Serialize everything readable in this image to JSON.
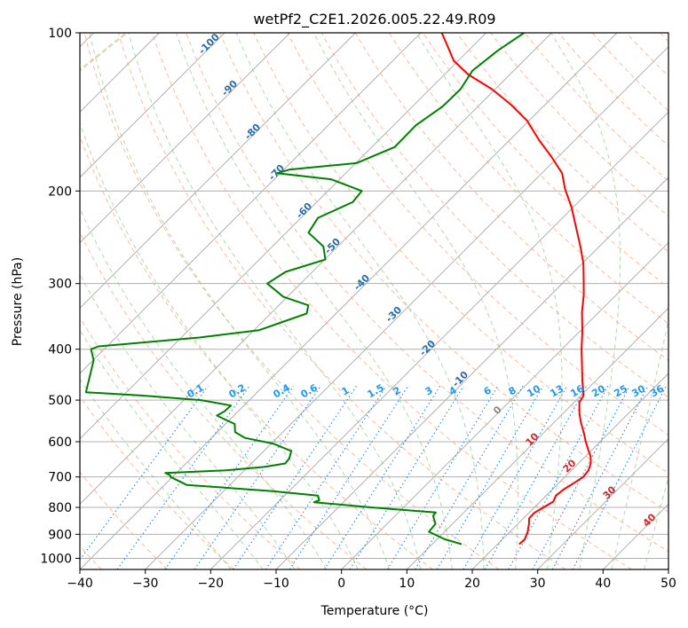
{
  "chart_data": {
    "type": "line",
    "title": "wetPf2_C2E1.2026.005.22.49.R09",
    "xlabel": "Temperature (°C)",
    "ylabel": "Pressure (hPa)",
    "xlim": [
      -40,
      50
    ],
    "ylim": [
      1050,
      100
    ],
    "y_scale": "log",
    "x_ticks": [
      -40,
      -30,
      -20,
      -10,
      0,
      10,
      20,
      30,
      40,
      50
    ],
    "y_ticks": [
      100,
      200,
      300,
      400,
      500,
      600,
      700,
      800,
      900,
      1000
    ],
    "grid": true,
    "skew": "skew-T log-p",
    "series": [
      {
        "role": "temperature",
        "color": "#ff0000",
        "points": [
          [
            23.3,
            940
          ],
          [
            23.4,
            920
          ],
          [
            22.7,
            890
          ],
          [
            21.7,
            860
          ],
          [
            20.9,
            840
          ],
          [
            20.8,
            820
          ],
          [
            21.4,
            800
          ],
          [
            22.0,
            780
          ],
          [
            21.5,
            760
          ],
          [
            21.7,
            740
          ],
          [
            22.3,
            720
          ],
          [
            22.8,
            700
          ],
          [
            22.6,
            680
          ],
          [
            21.9,
            660
          ],
          [
            20.8,
            640
          ],
          [
            19.3,
            620
          ],
          [
            17.8,
            600
          ],
          [
            16.0,
            575
          ],
          [
            14.0,
            550
          ],
          [
            12.5,
            530
          ],
          [
            10.8,
            505
          ],
          [
            10.4,
            490
          ],
          [
            8.0,
            460
          ],
          [
            5.6,
            430
          ],
          [
            3.0,
            400
          ],
          [
            0.4,
            370
          ],
          [
            -2.6,
            340
          ],
          [
            -5.0,
            315
          ],
          [
            -7.3,
            295
          ],
          [
            -9.8,
            275
          ],
          [
            -12.9,
            255
          ],
          [
            -16.4,
            235
          ],
          [
            -20.2,
            215
          ],
          [
            -24.1,
            198
          ],
          [
            -26.9,
            185
          ],
          [
            -31.1,
            172
          ],
          [
            -35.5,
            160
          ],
          [
            -40.3,
            147
          ],
          [
            -45.2,
            137
          ],
          [
            -50.5,
            128
          ],
          [
            -56.4,
            120
          ],
          [
            -60.7,
            113
          ],
          [
            -63.4,
            107
          ],
          [
            -66.8,
            100
          ]
        ]
      },
      {
        "role": "dewpoint",
        "color": "#008000",
        "points": [
          [
            14.5,
            940
          ],
          [
            11.2,
            920
          ],
          [
            7.6,
            890
          ],
          [
            7.4,
            860
          ],
          [
            5.8,
            830
          ],
          [
            5.7,
            818
          ],
          [
            -5.0,
            800
          ],
          [
            -14.5,
            782
          ],
          [
            -14.0,
            775
          ],
          [
            -14.9,
            760
          ],
          [
            -22.5,
            745
          ],
          [
            -36.6,
            725
          ],
          [
            -40.3,
            700
          ],
          [
            -40.6,
            695
          ],
          [
            -41.7,
            688
          ],
          [
            -32.8,
            680
          ],
          [
            -27.5,
            670
          ],
          [
            -24.8,
            660
          ],
          [
            -25.0,
            645
          ],
          [
            -25.8,
            625
          ],
          [
            -29.7,
            605
          ],
          [
            -34.9,
            590
          ],
          [
            -37.3,
            575
          ],
          [
            -38.6,
            555
          ],
          [
            -42.6,
            535
          ],
          [
            -42.1,
            525
          ],
          [
            -42.0,
            512
          ],
          [
            -47.4,
            500
          ],
          [
            -57.2,
            490
          ],
          [
            -66.2,
            483
          ],
          [
            -69.9,
            420
          ],
          [
            -72.0,
            400
          ],
          [
            -71.3,
            395
          ],
          [
            -57.2,
            380
          ],
          [
            -49.2,
            368
          ],
          [
            -46.9,
            355
          ],
          [
            -44.5,
            342
          ],
          [
            -45.5,
            330
          ],
          [
            -50.6,
            318
          ],
          [
            -55.1,
            300
          ],
          [
            -54.1,
            285
          ],
          [
            -49.9,
            270
          ],
          [
            -52.2,
            255
          ],
          [
            -56.6,
            240
          ],
          [
            -57.4,
            225
          ],
          [
            -54.5,
            210
          ],
          [
            -54.8,
            200
          ],
          [
            -61.3,
            190
          ],
          [
            -70.5,
            185
          ],
          [
            -69.1,
            182
          ],
          [
            -59.9,
            177
          ],
          [
            -56.5,
            165
          ],
          [
            -56.6,
            150
          ],
          [
            -55.4,
            138
          ],
          [
            -55.3,
            128
          ],
          [
            -56.3,
            118
          ],
          [
            -55.5,
            108
          ],
          [
            -54.2,
            100
          ]
        ]
      }
    ],
    "dry_adiabat_labels": [
      "-100",
      "-90",
      "-80",
      "-70",
      "-60",
      "-50",
      "-40",
      "-30",
      "-20",
      "-10"
    ],
    "mixing_ratio_labels": [
      "0.1",
      "0.2",
      "0.4",
      "0.6",
      "1",
      "1.5",
      "2",
      "3",
      "4",
      "6",
      "8",
      "10",
      "13",
      "16",
      "20",
      "25",
      "30",
      "36"
    ],
    "moist_adiabat_labels": [
      "0",
      "10",
      "20",
      "30",
      "40"
    ],
    "colors": {
      "isotherm": "#b0b0b0",
      "isobar": "#b0b0b0",
      "dry_adiabat": "#f4a582",
      "moist_adiabat": "#7fbf7b",
      "mixing_ratio": "#1e88e5",
      "dry_label": "#2a6ca8",
      "mixing_label": "#2196f3",
      "moist_label": "#d62728",
      "moist_label_zero": "#888888",
      "reference": "#d8c9a8"
    }
  }
}
